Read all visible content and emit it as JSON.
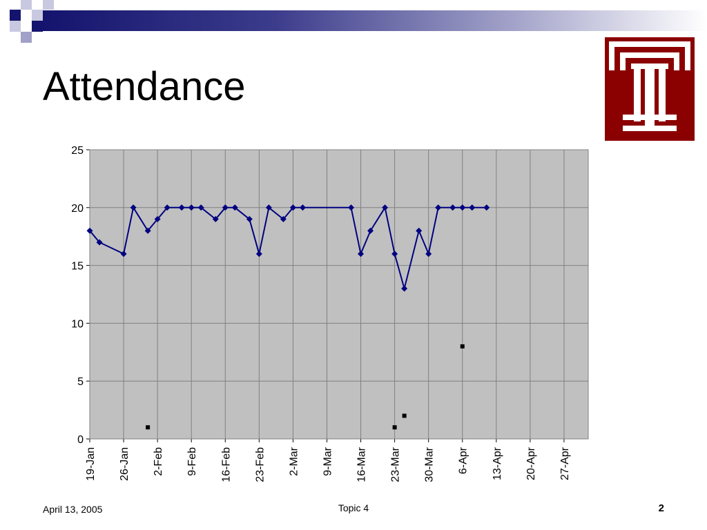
{
  "slide": {
    "title": "Attendance",
    "footer_date": "April 13, 2005",
    "footer_topic": "Topic 4",
    "page_number": "2"
  },
  "colors": {
    "plot_background": "#c0c0c0",
    "series_line": "#000080",
    "logo_red": "#8b0000",
    "title_bar_dark": "#14146e"
  },
  "logo": {
    "icon": "temple-t-logo-icon"
  },
  "chart_data": {
    "type": "line",
    "grid": true,
    "ylim": [
      0,
      25
    ],
    "yticks": [
      0,
      5,
      10,
      15,
      20,
      25
    ],
    "xlim": [
      "2005-01-19",
      "2005-05-02"
    ],
    "xtick_dates": [
      "2005-01-19",
      "2005-01-26",
      "2005-02-02",
      "2005-02-09",
      "2005-02-16",
      "2005-02-23",
      "2005-03-02",
      "2005-03-09",
      "2005-03-16",
      "2005-03-23",
      "2005-03-30",
      "2005-04-06",
      "2005-04-13",
      "2005-04-20",
      "2005-04-27"
    ],
    "xtick_labels": [
      "19-Jan",
      "26-Jan",
      "2-Feb",
      "9-Feb",
      "16-Feb",
      "23-Feb",
      "2-Mar",
      "9-Mar",
      "16-Mar",
      "23-Mar",
      "30-Mar",
      "6-Apr",
      "13-Apr",
      "20-Apr",
      "27-Apr"
    ],
    "series": [
      {
        "marker": "diamond",
        "points": [
          {
            "x": "2005-01-19",
            "y": 18
          },
          {
            "x": "2005-01-21",
            "y": 17
          },
          {
            "x": "2005-01-26",
            "y": 16
          },
          {
            "x": "2005-01-28",
            "y": 20
          },
          {
            "x": "2005-01-31",
            "y": 18
          },
          {
            "x": "2005-02-02",
            "y": 19
          },
          {
            "x": "2005-02-04",
            "y": 20
          },
          {
            "x": "2005-02-07",
            "y": 20
          },
          {
            "x": "2005-02-09",
            "y": 20
          },
          {
            "x": "2005-02-11",
            "y": 20
          },
          {
            "x": "2005-02-14",
            "y": 19
          },
          {
            "x": "2005-02-16",
            "y": 20
          },
          {
            "x": "2005-02-18",
            "y": 20
          },
          {
            "x": "2005-02-21",
            "y": 19
          },
          {
            "x": "2005-02-23",
            "y": 16
          },
          {
            "x": "2005-02-25",
            "y": 20
          },
          {
            "x": "2005-02-28",
            "y": 19
          },
          {
            "x": "2005-03-02",
            "y": 20
          },
          {
            "x": "2005-03-04",
            "y": 20
          },
          {
            "x": "2005-03-14",
            "y": 20
          },
          {
            "x": "2005-03-16",
            "y": 16
          },
          {
            "x": "2005-03-18",
            "y": 18
          },
          {
            "x": "2005-03-21",
            "y": 20
          },
          {
            "x": "2005-03-23",
            "y": 16
          },
          {
            "x": "2005-03-25",
            "y": 13
          },
          {
            "x": "2005-03-28",
            "y": 18
          },
          {
            "x": "2005-03-30",
            "y": 16
          },
          {
            "x": "2005-04-01",
            "y": 20
          },
          {
            "x": "2005-04-04",
            "y": 20
          },
          {
            "x": "2005-04-06",
            "y": 20
          },
          {
            "x": "2005-04-08",
            "y": 20
          },
          {
            "x": "2005-04-11",
            "y": 20
          }
        ]
      },
      {
        "marker": "square",
        "points": [
          {
            "x": "2005-01-31",
            "y": 1
          },
          {
            "x": "2005-03-23",
            "y": 1
          },
          {
            "x": "2005-03-25",
            "y": 2
          },
          {
            "x": "2005-04-06",
            "y": 8
          }
        ]
      }
    ]
  }
}
